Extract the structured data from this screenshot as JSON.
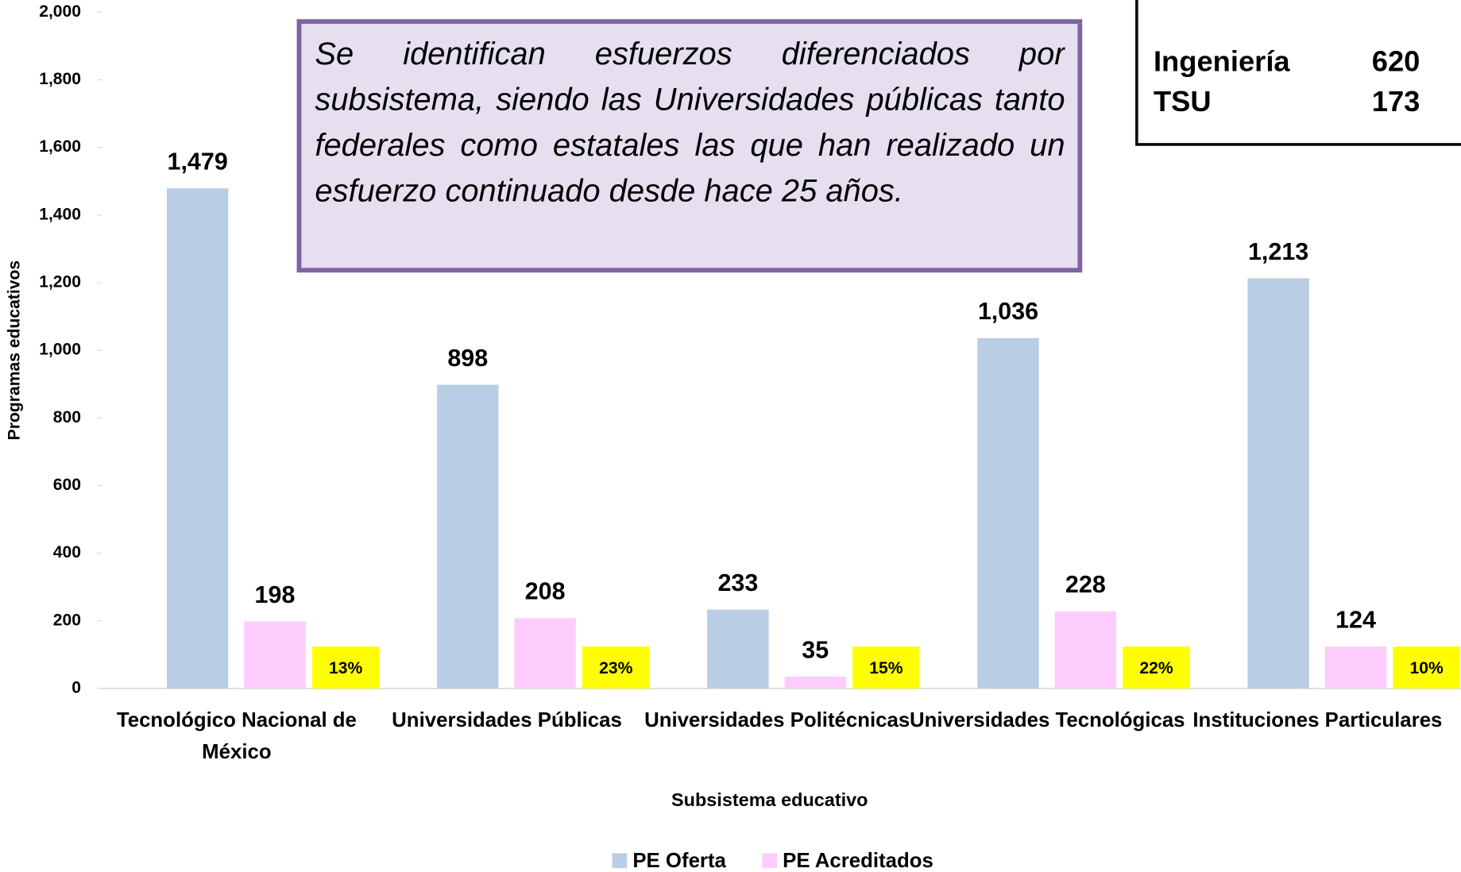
{
  "chart_data": {
    "type": "bar",
    "categories": [
      "Tecnológico Nacional de México",
      "Universidades Públicas",
      "Universidades Politécnicas",
      "Universidades Tecnológicas",
      "Instituciones Particulares"
    ],
    "series": [
      {
        "name": "PE Oferta",
        "color": "#b9cde5",
        "values": [
          1479,
          898,
          233,
          1036,
          1213
        ],
        "value_labels": [
          "1,479",
          "898",
          "233",
          "1,036",
          "1,213"
        ]
      },
      {
        "name": "PE Acreditados",
        "color": "#fccdfc",
        "values": [
          198,
          208,
          35,
          228,
          124
        ]
      }
    ],
    "accredited_share": {
      "color": "#ffff00",
      "values": [
        13,
        23,
        15,
        22,
        10
      ],
      "value_labels": [
        "13%",
        "23%",
        "15%",
        "22%",
        "10%"
      ]
    },
    "ylabel": "Programas educativos",
    "xlabel": "Subsistema educativo",
    "ylim": [
      0,
      2000
    ],
    "yticks": [
      0,
      200,
      400,
      600,
      800,
      {
        "value": 1000,
        "label": "1,000"
      },
      {
        "value": 1200,
        "label": "1,200"
      },
      {
        "value": 1400,
        "label": "1,400"
      },
      {
        "value": 1600,
        "label": "1,600"
      },
      {
        "value": 1800,
        "label": "1,800"
      },
      {
        "value": 2000,
        "label": "2,000"
      }
    ],
    "annotation": "Se identifican esfuerzos diferenciados por subsistema, siendo las Universidades públicas tanto federales como estatales las que han realizado un esfuerzo continuado desde hace 25 años.",
    "inset": {
      "rows": [
        [
          "Ingeniería",
          620
        ],
        [
          "TSU",
          173
        ]
      ]
    },
    "legend": "bottom"
  }
}
